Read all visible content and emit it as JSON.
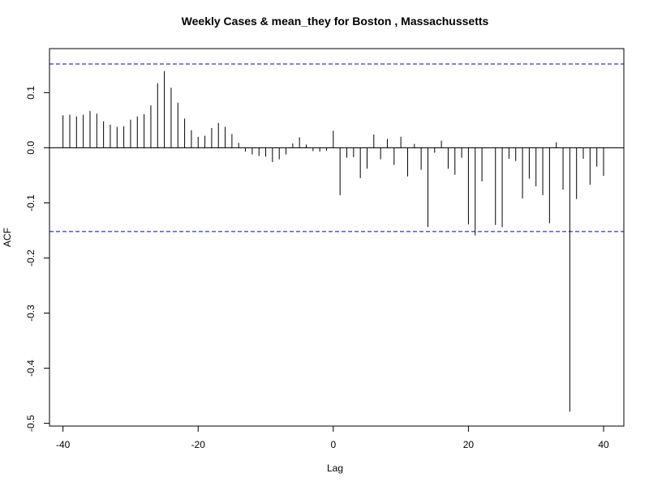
{
  "chart_data": {
    "type": "bar",
    "title": "Weekly Cases & mean_they for Boston , Massachussetts",
    "xlabel": "Lag",
    "ylabel": "ACF",
    "xlim": [
      -42,
      43
    ],
    "ylim": [
      -0.505,
      0.18
    ],
    "x_ticks": [
      -40,
      -20,
      0,
      20,
      40
    ],
    "x_tick_labels": [
      "-40",
      "-20",
      "0",
      "20",
      "40"
    ],
    "y_ticks": [
      -0.5,
      -0.4,
      -0.3,
      -0.2,
      -0.1,
      0.0,
      0.1
    ],
    "y_tick_labels": [
      "-0.5",
      "-0.4",
      "-0.3",
      "-0.2",
      "-0.1",
      "0.0",
      "0.1"
    ],
    "confidence_bound": 0.152,
    "bound_color": "#0000cc",
    "bar_color": "#000000",
    "grid": false,
    "lags": [
      -40,
      -39,
      -38,
      -37,
      -36,
      -35,
      -34,
      -33,
      -32,
      -31,
      -30,
      -29,
      -28,
      -27,
      -26,
      -25,
      -24,
      -23,
      -22,
      -21,
      -20,
      -19,
      -18,
      -17,
      -16,
      -15,
      -14,
      -13,
      -12,
      -11,
      -10,
      -9,
      -8,
      -7,
      -6,
      -5,
      -4,
      -3,
      -2,
      -1,
      0,
      1,
      2,
      3,
      4,
      5,
      6,
      7,
      8,
      9,
      10,
      11,
      12,
      13,
      14,
      15,
      16,
      17,
      18,
      19,
      20,
      21,
      22,
      23,
      24,
      25,
      26,
      27,
      28,
      29,
      30,
      31,
      32,
      33,
      34,
      35,
      36,
      37,
      38,
      39,
      40
    ],
    "acf": [
      0.059,
      0.06,
      0.057,
      0.06,
      0.067,
      0.062,
      0.048,
      0.042,
      0.038,
      0.039,
      0.051,
      0.057,
      0.061,
      0.077,
      0.117,
      0.139,
      0.109,
      0.082,
      0.053,
      0.032,
      0.02,
      0.022,
      0.036,
      0.045,
      0.038,
      0.025,
      0.009,
      -0.007,
      -0.012,
      -0.015,
      -0.016,
      -0.026,
      -0.021,
      -0.012,
      0.008,
      0.019,
      0.006,
      -0.006,
      -0.007,
      -0.005,
      0.031,
      -0.086,
      -0.018,
      -0.017,
      -0.055,
      -0.038,
      0.024,
      -0.021,
      0.016,
      -0.031,
      0.02,
      -0.052,
      0.007,
      -0.04,
      -0.144,
      -0.009,
      0.013,
      -0.038,
      -0.049,
      -0.018,
      -0.139,
      -0.159,
      -0.061,
      0.0,
      -0.14,
      -0.144,
      -0.02,
      -0.024,
      -0.092,
      -0.056,
      -0.07,
      -0.086,
      -0.137,
      0.01,
      -0.076,
      -0.479,
      -0.093,
      -0.02,
      -0.067,
      -0.034,
      -0.051
    ]
  }
}
